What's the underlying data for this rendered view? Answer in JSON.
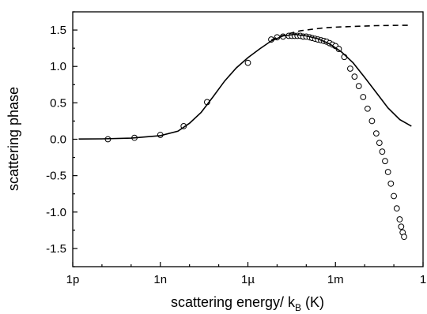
{
  "chart_data": {
    "type": "scatter",
    "title": "",
    "xlabel": "scattering energy/ k",
    "xlabel_subscript": "B",
    "xlabel_unit": " (K)",
    "ylabel": "scattering phase",
    "xscale": "log",
    "xlim": [
      1e-12,
      1
    ],
    "ylim": [
      -1.75,
      1.75
    ],
    "x_ticks": [
      {
        "value": 1e-12,
        "label": "1p"
      },
      {
        "value": 1e-09,
        "label": "1n"
      },
      {
        "value": 1e-06,
        "label": "1µ"
      },
      {
        "value": 0.001,
        "label": "1m"
      },
      {
        "value": 1,
        "label": "1"
      }
    ],
    "y_ticks": [
      {
        "value": 1.5,
        "label": "1.5"
      },
      {
        "value": 1.0,
        "label": "1.0"
      },
      {
        "value": 0.5,
        "label": "0.5"
      },
      {
        "value": 0.0,
        "label": "0.0"
      },
      {
        "value": -0.5,
        "label": "-0.5"
      },
      {
        "value": -1.0,
        "label": "-1.0"
      },
      {
        "value": -1.5,
        "label": "-1.5"
      }
    ],
    "grid": false,
    "legend": "none",
    "series": [
      {
        "style": "open-circles",
        "color": "#000000",
        "points": [
          [
            1.6e-11,
            0.0
          ],
          [
            1.3e-10,
            0.02
          ],
          [
            1e-09,
            0.06
          ],
          [
            6.3e-09,
            0.18
          ],
          [
            4e-08,
            0.51
          ],
          [
            1e-06,
            1.05
          ],
          [
            6.3e-06,
            1.37
          ],
          [
            1e-05,
            1.4
          ],
          [
            1.6e-05,
            1.41
          ],
          [
            2.5e-05,
            1.42
          ],
          [
            3.2e-05,
            1.42
          ],
          [
            4e-05,
            1.42
          ],
          [
            5e-05,
            1.42
          ],
          [
            6.3e-05,
            1.42
          ],
          [
            7.9e-05,
            1.41
          ],
          [
            0.0001,
            1.41
          ],
          [
            0.00013,
            1.4
          ],
          [
            0.00016,
            1.39
          ],
          [
            0.0002,
            1.38
          ],
          [
            0.00025,
            1.37
          ],
          [
            0.00032,
            1.36
          ],
          [
            0.0004,
            1.35
          ],
          [
            0.0005,
            1.34
          ],
          [
            0.00063,
            1.32
          ],
          [
            0.00079,
            1.3
          ],
          [
            0.001,
            1.28
          ],
          [
            0.0013,
            1.24
          ],
          [
            0.002,
            1.13
          ],
          [
            0.0032,
            0.97
          ],
          [
            0.0045,
            0.86
          ],
          [
            0.0063,
            0.73
          ],
          [
            0.0089,
            0.58
          ],
          [
            0.0126,
            0.42
          ],
          [
            0.0178,
            0.25
          ],
          [
            0.025,
            0.08
          ],
          [
            0.032,
            -0.05
          ],
          [
            0.04,
            -0.17
          ],
          [
            0.05,
            -0.3
          ],
          [
            0.063,
            -0.45
          ],
          [
            0.079,
            -0.61
          ],
          [
            0.1,
            -0.78
          ],
          [
            0.126,
            -0.95
          ],
          [
            0.158,
            -1.1
          ],
          [
            0.178,
            -1.2
          ],
          [
            0.2,
            -1.28
          ],
          [
            0.224,
            -1.34
          ]
        ]
      },
      {
        "style": "solid-line",
        "color": "#000000",
        "points": [
          [
            1.6e-12,
            0.003
          ],
          [
            1e-11,
            0.005
          ],
          [
            1e-10,
            0.015
          ],
          [
            1e-09,
            0.05
          ],
          [
            4e-09,
            0.11
          ],
          [
            1e-08,
            0.22
          ],
          [
            2.5e-08,
            0.37
          ],
          [
            6.3e-08,
            0.58
          ],
          [
            1.6e-07,
            0.8
          ],
          [
            4e-07,
            0.98
          ],
          [
            1e-06,
            1.12
          ],
          [
            2.5e-06,
            1.24
          ],
          [
            6.3e-06,
            1.35
          ],
          [
            1.6e-05,
            1.42
          ],
          [
            4e-05,
            1.44
          ],
          [
            0.0001,
            1.42
          ],
          [
            0.00025,
            1.38
          ],
          [
            0.00063,
            1.31
          ],
          [
            0.0016,
            1.2
          ],
          [
            0.004,
            1.05
          ],
          [
            0.01,
            0.85
          ],
          [
            0.025,
            0.64
          ],
          [
            0.063,
            0.43
          ],
          [
            0.16,
            0.27
          ],
          [
            0.4,
            0.18
          ]
        ]
      },
      {
        "style": "dashed-line",
        "color": "#000000",
        "points": [
          [
            6.3e-06,
            1.36
          ],
          [
            1e-05,
            1.4
          ],
          [
            2.5e-05,
            1.45
          ],
          [
            6.3e-05,
            1.49
          ],
          [
            0.00016,
            1.51
          ],
          [
            0.0004,
            1.53
          ],
          [
            0.001,
            1.54
          ],
          [
            0.004,
            1.55
          ],
          [
            0.025,
            1.56
          ],
          [
            0.16,
            1.565
          ],
          [
            0.4,
            1.565
          ]
        ]
      }
    ]
  }
}
